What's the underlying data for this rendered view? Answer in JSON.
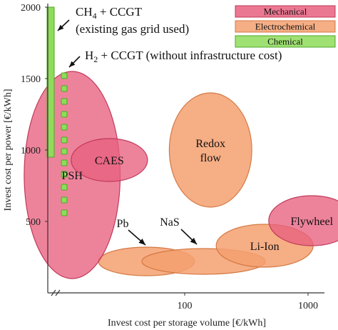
{
  "chart_data": {
    "type": "scatter",
    "xlabel": "Invest cost per storage volume [€/kWh]",
    "ylabel": "Invest cost per power [€/kWh]",
    "x_scale": "log",
    "x_ticks": [
      {
        "value": 100,
        "label": "100"
      },
      {
        "value": 1000,
        "label": "1000"
      }
    ],
    "y_ticks": [
      {
        "value": 500,
        "label": "500"
      },
      {
        "value": 1000,
        "label": "1000"
      },
      {
        "value": 1500,
        "label": "1500"
      },
      {
        "value": 2000,
        "label": "2000"
      }
    ],
    "ylim": [
      0,
      2000
    ],
    "grid": false,
    "legend_position": "top-right",
    "legend": [
      {
        "name": "Mechanical",
        "color": "#e8607f"
      },
      {
        "name": "Electrochemical",
        "color": "#f4a070"
      },
      {
        "name": "Chemical",
        "color": "#8fdc5a"
      }
    ],
    "technologies": [
      {
        "name": "PSH",
        "category": "Mechanical",
        "x_range": [
          5,
          30
        ],
        "y_range": [
          100,
          1550
        ]
      },
      {
        "name": "CAES",
        "category": "Mechanical",
        "x_range": [
          12,
          50
        ],
        "y_range": [
          780,
          1080
        ]
      },
      {
        "name": "Redox flow",
        "category": "Electrochemical",
        "x_range": [
          75,
          350
        ],
        "y_range": [
          600,
          1400
        ]
      },
      {
        "name": "Flywheel",
        "category": "Mechanical",
        "x_range": [
          480,
          2400
        ],
        "y_range": [
          330,
          680
        ]
      },
      {
        "name": "Li-Ion",
        "category": "Electrochemical",
        "x_range": [
          180,
          1100
        ],
        "y_range": [
          180,
          480
        ]
      },
      {
        "name": "Pb",
        "category": "Electrochemical",
        "x_range": [
          20,
          120
        ],
        "y_range": [
          120,
          320
        ]
      },
      {
        "name": "NaS",
        "category": "Electrochemical",
        "x_range": [
          45,
          450
        ],
        "y_range": [
          130,
          310
        ]
      }
    ],
    "annotations": [
      {
        "label": "Pb"
      },
      {
        "label": "NaS"
      }
    ],
    "chemical": [
      {
        "name": "CH4 + CCGT",
        "line1_main": "CH",
        "line1_sub": "4",
        "line1_rest": " + CCGT",
        "line2": "(existing gas grid used)",
        "style": "bar",
        "y_range": [
          950,
          2000
        ]
      },
      {
        "name": "H2 + CCGT",
        "line1_main": "H",
        "line1_sub": "2",
        "line1_rest": " + CCGT (without infrastructure cost)",
        "style": "squares",
        "y_values": [
          1520,
          1430,
          1340,
          1250,
          1160,
          1070,
          990,
          910,
          830,
          740,
          650,
          560
        ]
      }
    ]
  }
}
